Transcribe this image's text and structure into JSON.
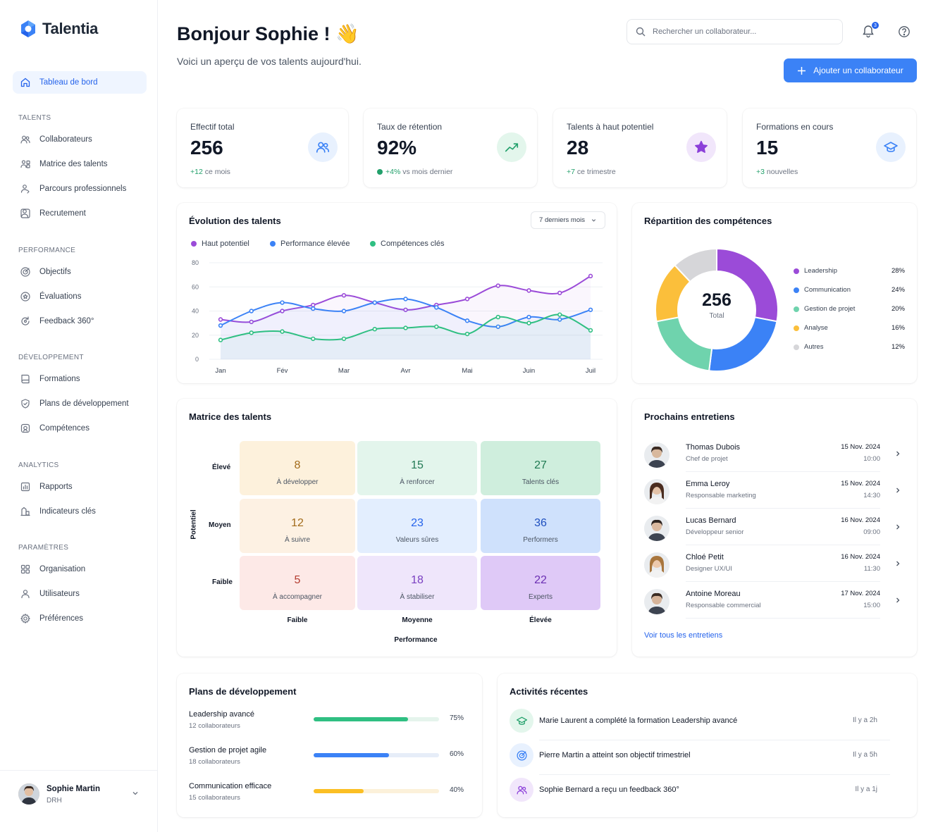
{
  "brand": {
    "name": "Talentia"
  },
  "sidebar": {
    "active": {
      "label": "Tableau de bord",
      "icon": "home-icon"
    },
    "sections": [
      {
        "title": "TALENTS",
        "items": [
          {
            "label": "Collaborateurs",
            "icon": "users-icon"
          },
          {
            "label": "Matrice des talents",
            "icon": "users-grid-icon"
          },
          {
            "label": "Parcours professionnels",
            "icon": "user-path-icon"
          },
          {
            "label": "Recrutement",
            "icon": "user-plus-icon"
          }
        ]
      },
      {
        "title": "PERFORMANCE",
        "items": [
          {
            "label": "Objectifs",
            "icon": "target-icon"
          },
          {
            "label": "Évaluations",
            "icon": "star-circle-icon"
          },
          {
            "label": "Feedback 360°",
            "icon": "refresh-circle-icon"
          }
        ]
      },
      {
        "title": "DÉVELOPPEMENT",
        "items": [
          {
            "label": "Formations",
            "icon": "book-icon"
          },
          {
            "label": "Plans de développement",
            "icon": "shield-check-icon"
          },
          {
            "label": "Compétences",
            "icon": "badge-icon"
          }
        ]
      },
      {
        "title": "ANALYTICS",
        "items": [
          {
            "label": "Rapports",
            "icon": "bar-chart-icon"
          },
          {
            "label": "Indicateurs clés",
            "icon": "kpi-icon"
          }
        ]
      },
      {
        "title": "PARAMÈTRES",
        "items": [
          {
            "label": "Organisation",
            "icon": "org-icon"
          },
          {
            "label": "Utilisateurs",
            "icon": "user-icon"
          },
          {
            "label": "Préférences",
            "icon": "gear-icon"
          }
        ]
      }
    ]
  },
  "user": {
    "name": "Sophie Martin",
    "role": "DRH"
  },
  "header": {
    "greeting": "Bonjour Sophie ! 👋",
    "subtitle": "Voici un aperçu de vos talents aujourd'hui.",
    "search_placeholder": "Rechercher un collaborateur...",
    "notification_count": "3",
    "add_button": "Ajouter un collaborateur"
  },
  "stats": [
    {
      "label": "Effectif total",
      "value": "256",
      "delta": "+12",
      "note": " ce mois",
      "icon": "users-icon",
      "color": "#3b82f6",
      "bg": "#e8f1fe"
    },
    {
      "label": "Taux de rétention",
      "value": "92%",
      "delta": "+4%",
      "note": " vs mois dernier",
      "icon": "trend-up-icon",
      "color": "#22a06b",
      "bg": "#e3f6ec"
    },
    {
      "label": "Talents à haut potentiel",
      "value": "28",
      "delta": "+7",
      "note": " ce trimestre",
      "icon": "star-icon",
      "color": "#8b3fd9",
      "bg": "#f1e6fb"
    },
    {
      "label": "Formations en cours",
      "value": "15",
      "delta": "+3",
      "note": " nouvelles",
      "icon": "graduation-cap-icon",
      "color": "#3b82f6",
      "bg": "#e8f1fe"
    }
  ],
  "evolution": {
    "title": "Évolution des talents",
    "period": "7 derniers mois",
    "legend": [
      "Haut potentiel",
      "Performance élevée",
      "Compétences clés"
    ]
  },
  "chart_data": {
    "type": "line",
    "categories": [
      "Jan",
      "Fév",
      "Mar",
      "Avr",
      "Mai",
      "Juin",
      "Juil"
    ],
    "ylim": [
      0,
      80
    ],
    "yticks": [
      0,
      20,
      40,
      60,
      80
    ],
    "series": [
      {
        "name": "Haut potentiel",
        "color": "#9b4bd8",
        "x": [
          0,
          0.5,
          1,
          1.5,
          2,
          2.5,
          3,
          3.5,
          4,
          4.5,
          5,
          5.5,
          6
        ],
        "values": [
          33,
          31,
          40,
          45,
          53,
          47,
          41,
          45,
          50,
          61,
          57,
          55,
          69
        ]
      },
      {
        "name": "Performance élevée",
        "color": "#3b82f6",
        "x": [
          0,
          0.5,
          1,
          1.5,
          2,
          2.5,
          3,
          3.5,
          4,
          4.5,
          5,
          5.5,
          6
        ],
        "values": [
          28,
          40,
          47,
          42,
          40,
          47,
          50,
          43,
          32,
          27,
          35,
          33,
          41
        ]
      },
      {
        "name": "Compétences clés",
        "color": "#2fbf82",
        "x": [
          0,
          0.5,
          1,
          1.5,
          2,
          2.5,
          3,
          3.5,
          4,
          4.5,
          5,
          5.5,
          6
        ],
        "values": [
          16,
          22,
          23,
          17,
          17,
          25,
          26,
          27,
          21,
          35,
          30,
          37,
          24
        ]
      }
    ]
  },
  "skills": {
    "title": "Répartition des compétences",
    "total": "256",
    "total_label": "Total",
    "items": [
      {
        "label": "Leadership",
        "pct": "28%",
        "value": 28,
        "color": "#9b4bd8"
      },
      {
        "label": "Communication",
        "pct": "24%",
        "value": 24,
        "color": "#3b82f6"
      },
      {
        "label": "Gestion de projet",
        "pct": "20%",
        "value": 20,
        "color": "#6fd3ad"
      },
      {
        "label": "Analyse",
        "pct": "16%",
        "value": 16,
        "color": "#fbbf3b"
      },
      {
        "label": "Autres",
        "pct": "12%",
        "value": 12,
        "color": "#d6d6d9"
      }
    ]
  },
  "matrix": {
    "title": "Matrice des talents",
    "y_axis": "Potentiel",
    "x_axis": "Performance",
    "rows": [
      "Élevé",
      "Moyen",
      "Faible"
    ],
    "cols": [
      "Faible",
      "Moyenne",
      "Élevée"
    ],
    "cells": [
      [
        {
          "num": "8",
          "label": "À développer",
          "bg": "#fdf1dc",
          "fg": "#a26b1a"
        },
        {
          "num": "15",
          "label": "À renforcer",
          "bg": "#e3f5ec",
          "fg": "#237a55"
        },
        {
          "num": "27",
          "label": "Talents clés",
          "bg": "#cfeedd",
          "fg": "#1f7a52"
        }
      ],
      [
        {
          "num": "12",
          "label": "À suivre",
          "bg": "#fdf1e3",
          "fg": "#a26b1a"
        },
        {
          "num": "23",
          "label": "Valeurs sûres",
          "bg": "#e3eefe",
          "fg": "#2563eb"
        },
        {
          "num": "36",
          "label": "Performers",
          "bg": "#cfe1fc",
          "fg": "#1e4fbf"
        }
      ],
      [
        {
          "num": "5",
          "label": "À accompagner",
          "bg": "#fde9e7",
          "fg": "#b43c30"
        },
        {
          "num": "18",
          "label": "À stabiliser",
          "bg": "#efe6fb",
          "fg": "#7a3fc1"
        },
        {
          "num": "22",
          "label": "Experts",
          "bg": "#dfc9f7",
          "fg": "#6b2fb3"
        }
      ]
    ]
  },
  "interviews": {
    "title": "Prochains entretiens",
    "link": "Voir tous les entretiens",
    "items": [
      {
        "name": "Thomas Dubois",
        "role": "Chef de projet",
        "date": "15 Nov. 2024",
        "time": "10:00",
        "skin": "#d8b89d",
        "hair": "#3a2a22"
      },
      {
        "name": "Emma Leroy",
        "role": "Responsable marketing",
        "date": "15 Nov. 2024",
        "time": "14:30",
        "skin": "#e3c2a8",
        "hair": "#4a2c1f"
      },
      {
        "name": "Lucas Bernard",
        "role": "Développeur senior",
        "date": "16 Nov. 2024",
        "time": "09:00",
        "skin": "#dbb99f",
        "hair": "#2f2521"
      },
      {
        "name": "Chloé Petit",
        "role": "Designer UX/UI",
        "date": "16 Nov. 2024",
        "time": "11:30",
        "skin": "#ecc9ad",
        "hair": "#a8763e"
      },
      {
        "name": "Antoine Moreau",
        "role": "Responsable commercial",
        "date": "17 Nov. 2024",
        "time": "15:00",
        "skin": "#d6b49a",
        "hair": "#3b2c24"
      }
    ]
  },
  "plans": {
    "title": "Plans de développement",
    "items": [
      {
        "name": "Leadership avancé",
        "count": "12 collaborateurs",
        "pct": "75%",
        "value": 0.75,
        "color": "#2fbf82",
        "track": "#e5f4ec"
      },
      {
        "name": "Gestion de projet agile",
        "count": "18 collaborateurs",
        "pct": "60%",
        "value": 0.6,
        "color": "#3b82f6",
        "track": "#e6edf8"
      },
      {
        "name": "Communication efficace",
        "count": "15 collaborateurs",
        "pct": "40%",
        "value": 0.4,
        "color": "#fbbf24",
        "track": "#fcf1da"
      }
    ]
  },
  "activities": {
    "title": "Activités récentes",
    "items": [
      {
        "text": "Marie Laurent a complété la formation Leadership avancé",
        "time": "Il y a 2h",
        "icon": "graduation-cap-icon",
        "color": "#22a06b",
        "bg": "#e3f6ec"
      },
      {
        "text": "Pierre Martin a atteint son objectif trimestriel",
        "time": "Il y a 5h",
        "icon": "target-icon",
        "color": "#3b82f6",
        "bg": "#e8f1fe"
      },
      {
        "text": "Sophie Bernard a reçu un feedback 360°",
        "time": "Il y a 1j",
        "icon": "users-icon",
        "color": "#8b3fd9",
        "bg": "#f1e6fb"
      }
    ]
  }
}
